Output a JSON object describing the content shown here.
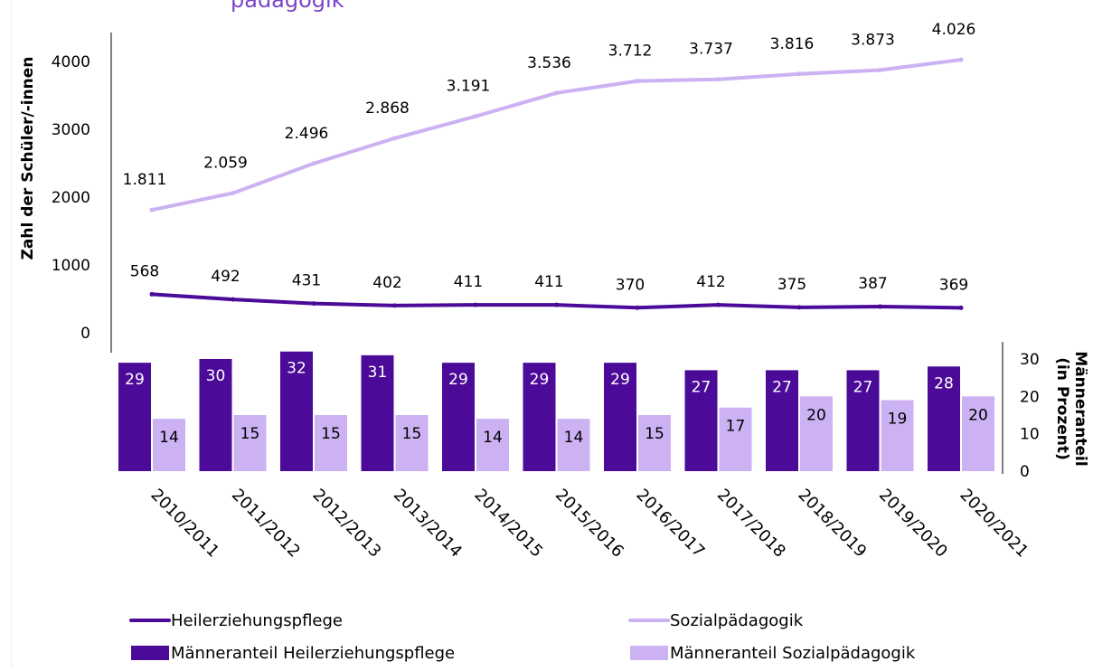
{
  "title_partial": "pädagogik",
  "chart_data": [
    {
      "type": "line",
      "ylabel": "Zahl der Schüler/-innen",
      "ylim": [
        0,
        4000
      ],
      "yticks": [
        "0",
        "1000",
        "2000",
        "3000",
        "4000"
      ],
      "categories": [
        "2010/2011",
        "2011/2012",
        "2012/2013",
        "2013/2014",
        "2014/2015",
        "2015/2016",
        "2016/2017",
        "2017/2018",
        "2018/2019",
        "2019/2020",
        "2020/2021"
      ],
      "series": [
        {
          "name": "Heilerziehungspflege",
          "color": "#4b0a98",
          "values": [
            568,
            492,
            431,
            402,
            411,
            411,
            370,
            412,
            375,
            387,
            369
          ],
          "labels": [
            "568",
            "492",
            "431",
            "402",
            "411",
            "411",
            "370",
            "412",
            "375",
            "387",
            "369"
          ]
        },
        {
          "name": "Sozialpädagogik",
          "color": "#ccb1f3",
          "values": [
            1811,
            2059,
            2496,
            2868,
            3191,
            3536,
            3712,
            3737,
            3816,
            3873,
            4026
          ],
          "labels": [
            "1.811",
            "2.059",
            "2.496",
            "2.868",
            "3.191",
            "3.536",
            "3.712",
            "3.737",
            "3.816",
            "3.873",
            "4.026"
          ]
        }
      ],
      "grid": false,
      "legend": "bottom"
    },
    {
      "type": "bar",
      "ylabel": "Männeranteil (in Prozent)",
      "ylim": [
        0,
        30
      ],
      "yticks": [
        "0",
        "10",
        "20",
        "30"
      ],
      "categories": [
        "2010/2011",
        "2011/2012",
        "2012/2013",
        "2013/2014",
        "2014/2015",
        "2015/2016",
        "2016/2017",
        "2017/2018",
        "2018/2019",
        "2019/2020",
        "2020/2021"
      ],
      "series": [
        {
          "name": "Männeranteil Heilerziehungspflege",
          "color": "#4b0a98",
          "values": [
            29,
            30,
            32,
            31,
            29,
            29,
            29,
            27,
            27,
            27,
            28
          ]
        },
        {
          "name": "Männeranteil Sozialpädagogik",
          "color": "#ccb1f3",
          "values": [
            14,
            15,
            15,
            15,
            14,
            14,
            15,
            17,
            20,
            19,
            20
          ]
        }
      ],
      "grid": false,
      "legend": "bottom"
    }
  ]
}
